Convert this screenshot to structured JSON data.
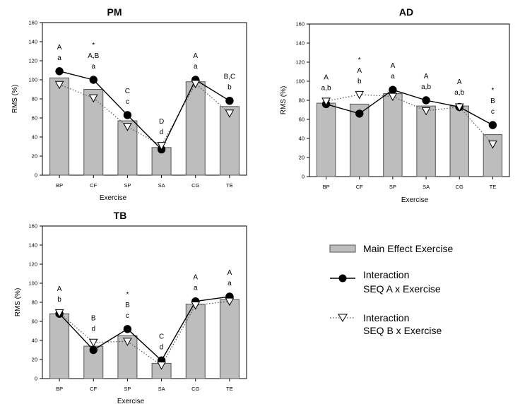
{
  "legend": {
    "bar_label": "Main Effect Exercise",
    "seqA_label_line1": "Interaction",
    "seqA_label_line2": "SEQ A x Exercise",
    "seqB_label_line1": "Interaction",
    "seqB_label_line2": "SEQ B x Exercise"
  },
  "colors": {
    "bar": "#bdbdbd",
    "bar_edge": "#555555",
    "seqA": "#000000",
    "seqB": "#555555"
  },
  "chart_data": [
    {
      "type": "bar",
      "title": "PM",
      "xlabel": "Exercise",
      "ylabel": "RMS (%)",
      "ylim": [
        0,
        160
      ],
      "yticks": [
        0,
        20,
        40,
        60,
        80,
        100,
        120,
        140,
        160
      ],
      "categories": [
        "BP",
        "CF",
        "SP",
        "SA",
        "CG",
        "TE"
      ],
      "series": [
        {
          "name": "Main Effect Exercise",
          "kind": "bar",
          "values": [
            102,
            90,
            57,
            29,
            98,
            72
          ]
        },
        {
          "name": "Interaction SEQ A x Exercise",
          "kind": "line",
          "values": [
            109,
            100,
            63,
            27,
            100,
            78
          ]
        },
        {
          "name": "Interaction SEQ B x Exercise",
          "kind": "line",
          "values": [
            95,
            81,
            51,
            31,
            96,
            65
          ]
        }
      ],
      "annotations": [
        [
          "A",
          "a"
        ],
        [
          "*",
          "A,B",
          "a"
        ],
        [
          "C",
          "c"
        ],
        [
          "D",
          "d"
        ],
        [
          "A",
          "a"
        ],
        [
          "B,C",
          "b"
        ]
      ]
    },
    {
      "type": "bar",
      "title": "AD",
      "xlabel": "Exercise",
      "ylabel": "RMS (%)",
      "ylim": [
        0,
        160
      ],
      "yticks": [
        0,
        20,
        40,
        60,
        80,
        100,
        120,
        140,
        160
      ],
      "categories": [
        "BP",
        "CF",
        "SP",
        "SA",
        "CG",
        "TE"
      ],
      "series": [
        {
          "name": "Main Effect Exercise",
          "kind": "bar",
          "values": [
            77,
            76,
            87,
            74,
            74,
            44
          ]
        },
        {
          "name": "Interaction SEQ A x Exercise",
          "kind": "line",
          "values": [
            76,
            66,
            91,
            80,
            73,
            54
          ]
        },
        {
          "name": "Interaction SEQ B x Exercise",
          "kind": "line",
          "values": [
            79,
            86,
            84,
            69,
            73,
            34
          ]
        }
      ],
      "annotations": [
        [
          "A",
          "a,b"
        ],
        [
          "*",
          "A",
          "b"
        ],
        [
          "A",
          "a"
        ],
        [
          "A",
          "a,b"
        ],
        [
          "A",
          "a,b"
        ],
        [
          "*",
          "B",
          "c"
        ]
      ]
    },
    {
      "type": "bar",
      "title": "TB",
      "xlabel": "Exercise",
      "ylabel": "RMS (%)",
      "ylim": [
        0,
        160
      ],
      "yticks": [
        0,
        20,
        40,
        60,
        80,
        100,
        120,
        140,
        160
      ],
      "categories": [
        "BP",
        "CF",
        "SP",
        "SA",
        "CG",
        "TE"
      ],
      "series": [
        {
          "name": "Main Effect Exercise",
          "kind": "bar",
          "values": [
            68,
            34,
            45,
            16,
            78,
            83
          ]
        },
        {
          "name": "Interaction SEQ A x Exercise",
          "kind": "line",
          "values": [
            68,
            30,
            52,
            19,
            81,
            86
          ]
        },
        {
          "name": "Interaction SEQ B x Exercise",
          "kind": "line",
          "values": [
            69,
            38,
            39,
            14,
            77,
            81
          ]
        }
      ],
      "annotations": [
        [
          "A",
          "b"
        ],
        [
          "B",
          "d"
        ],
        [
          "*",
          "B",
          "c"
        ],
        [
          "C",
          "d"
        ],
        [
          "A",
          "a"
        ],
        [
          "A",
          "a"
        ]
      ]
    }
  ]
}
